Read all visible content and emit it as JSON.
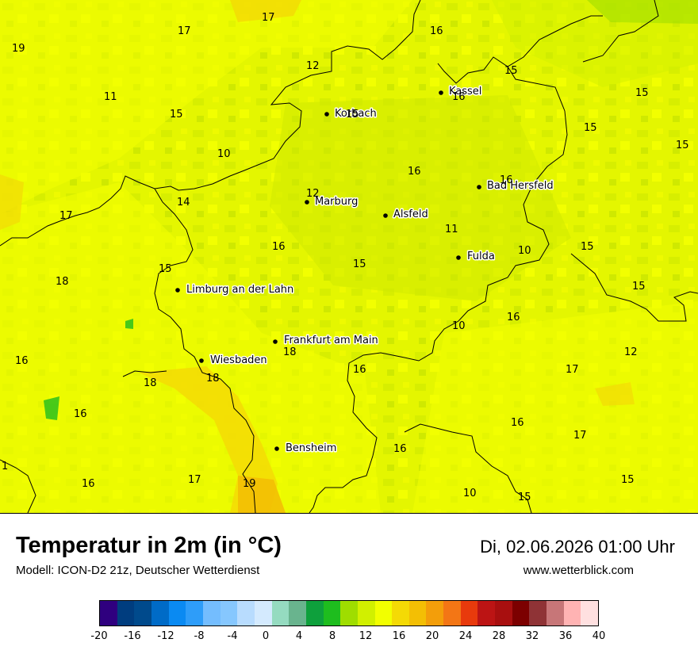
{
  "header": {
    "title": "Temperatur in 2m (in °C)",
    "model": "Modell: ICON-D2 21z, Deutscher Wetterdienst",
    "datetime": "Di, 02.06.2026 01:00 Uhr",
    "website": "www.wetterblick.com"
  },
  "cities": [
    {
      "name": "Kassel"
    },
    {
      "name": "Korbach"
    },
    {
      "name": "Bad Hersfeld"
    },
    {
      "name": "Marburg"
    },
    {
      "name": "Alsfeld"
    },
    {
      "name": "Fulda"
    },
    {
      "name": "Limburg an der Lahn"
    },
    {
      "name": "Frankfurt am Main"
    },
    {
      "name": "Wiesbaden"
    },
    {
      "name": "Bensheim"
    }
  ],
  "values": [
    "17",
    "17",
    "19",
    "16",
    "12",
    "15",
    "15",
    "11",
    "15",
    "16",
    "15",
    "10",
    "15",
    "16",
    "15",
    "12",
    "14",
    "17",
    "16",
    "11",
    "15",
    "10",
    "15",
    "18",
    "15",
    "15",
    "16",
    "18",
    "10",
    "12",
    "16",
    "18",
    "18",
    "17",
    "16",
    "16",
    "16",
    "16",
    "17",
    "1",
    "16",
    "17",
    "19",
    "10",
    "15",
    "15"
  ],
  "legend": {
    "colors": [
      "#2f007f",
      "#003d7f",
      "#004a8c",
      "#006bc7",
      "#0a8af2",
      "#2e9df9",
      "#74bdfe",
      "#86c7fe",
      "#b8dcfe",
      "#d4eafe",
      "#95dbc0",
      "#69b48e",
      "#0ea03c",
      "#1ebd1e",
      "#9fdd00",
      "#d1f000",
      "#f2ff00",
      "#f4da05",
      "#f3bf04",
      "#f39e0a",
      "#f37615",
      "#e83a0c",
      "#bc1414",
      "#a80f0f",
      "#7c0000",
      "#8f3336",
      "#c77678",
      "#ffb3b3",
      "#ffe0e0"
    ],
    "ticks": [
      "-20",
      "-16",
      "-12",
      "-8",
      "-4",
      "0",
      "4",
      "8",
      "12",
      "16",
      "20",
      "24",
      "28",
      "32",
      "36",
      "40"
    ]
  }
}
